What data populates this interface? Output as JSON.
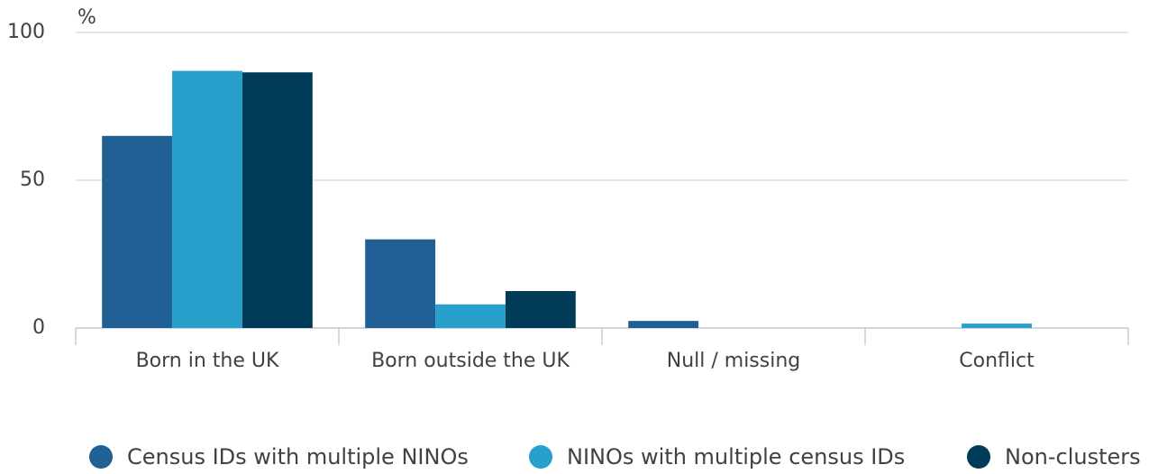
{
  "chart_data": {
    "type": "bar",
    "y_label": "%",
    "categories": [
      "Born in the UK",
      "Born outside the UK",
      "Null / missing",
      "Conflict"
    ],
    "series": [
      {
        "name": "Census IDs with multiple NINOs",
        "color": "#206095",
        "values": [
          65,
          30,
          2.4,
          0
        ]
      },
      {
        "name": "NINOs with multiple census IDs",
        "color": "#27a0cc",
        "values": [
          87,
          8,
          0,
          1.5
        ]
      },
      {
        "name": "Non-clusters",
        "color": "#003c57",
        "values": [
          86.5,
          12.5,
          0,
          0
        ]
      }
    ],
    "ylim": [
      0,
      100
    ],
    "yticks": [
      0,
      50,
      100
    ],
    "grid": true,
    "legend": "bottom"
  }
}
